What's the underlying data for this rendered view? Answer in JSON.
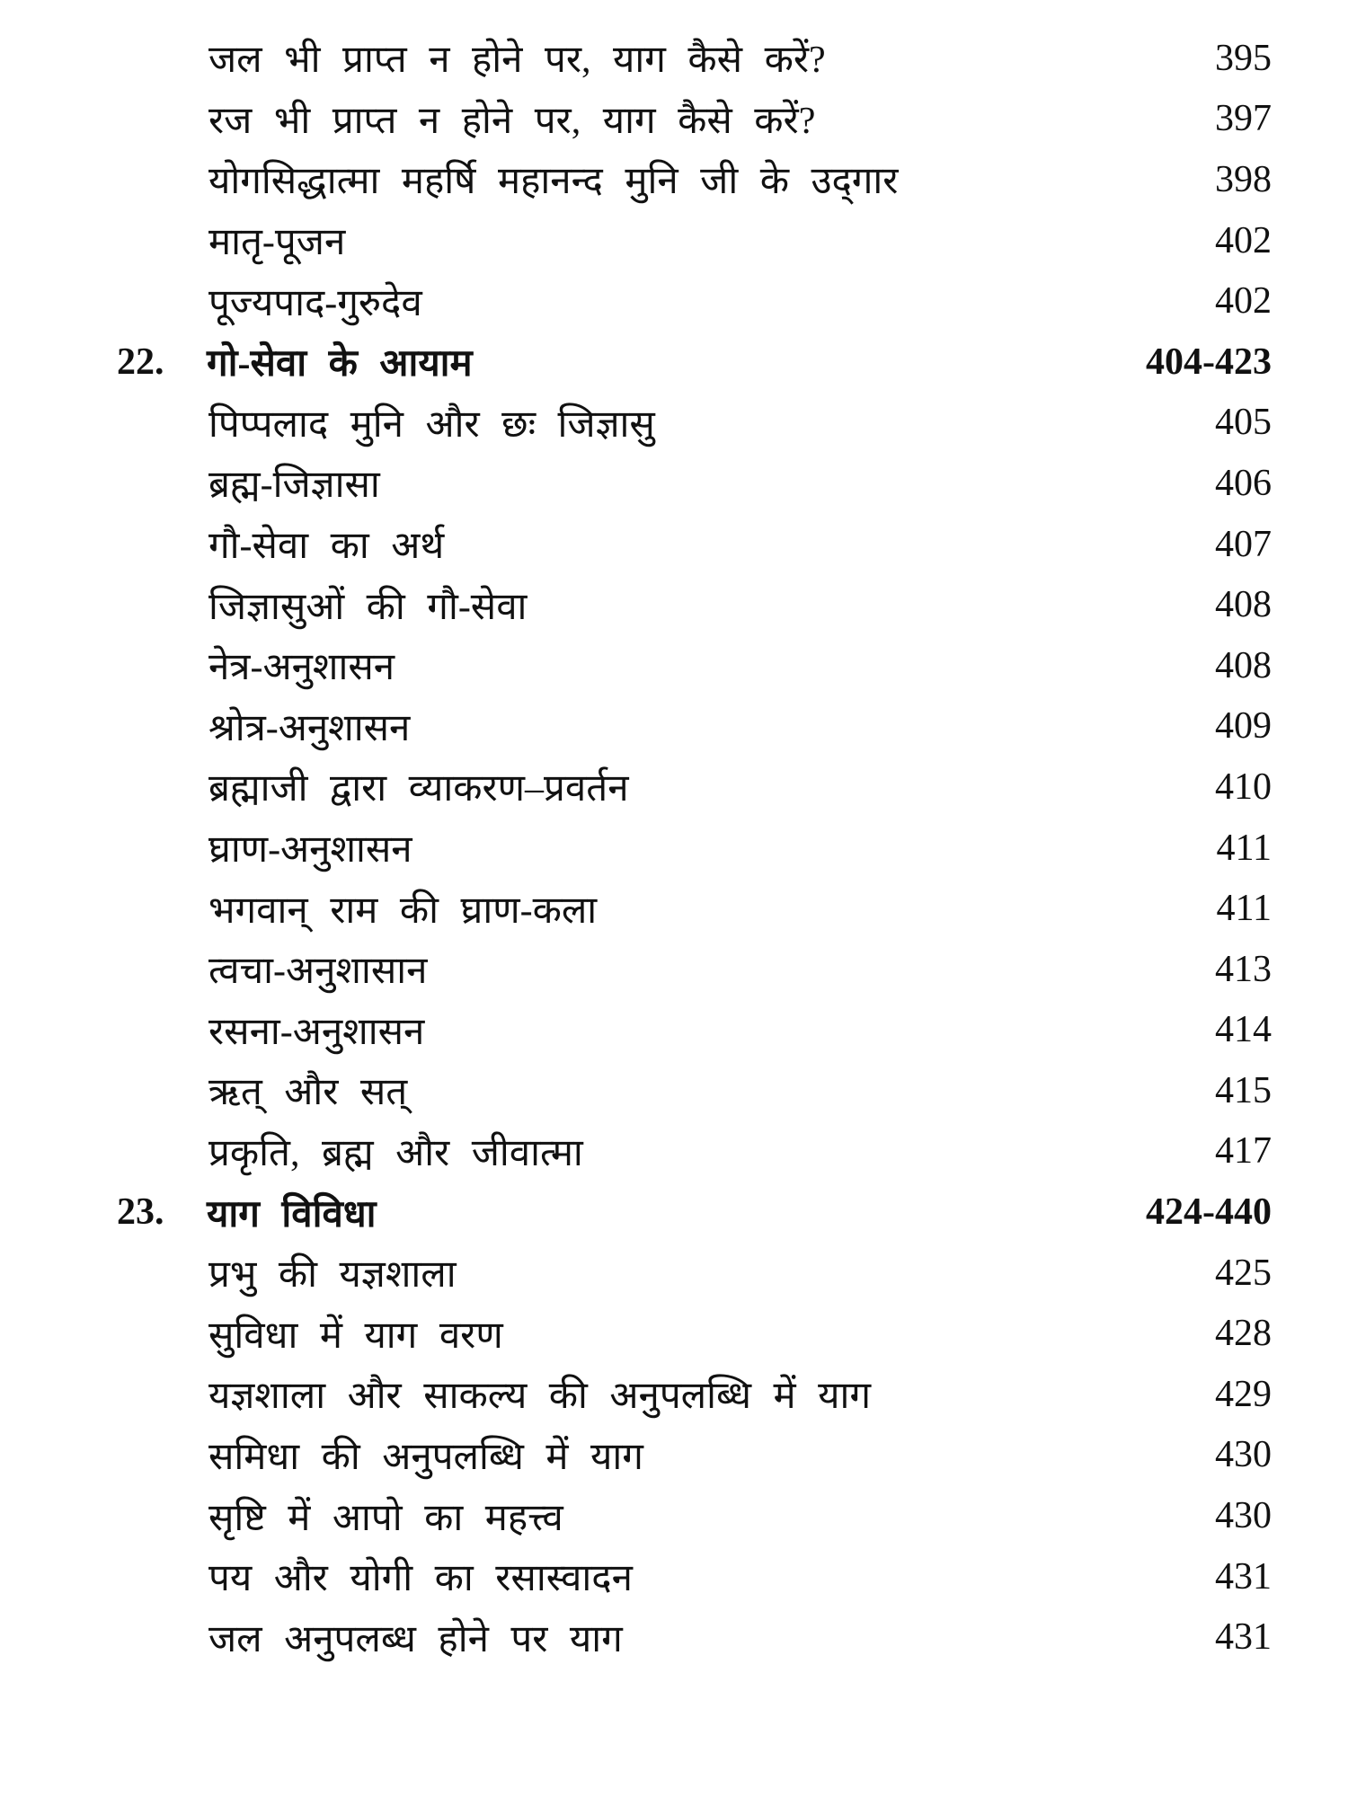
{
  "entries": [
    {
      "title": "जल भी प्राप्त न होने पर, याग कैसे करें?",
      "page": "395"
    },
    {
      "title": "रज भी प्राप्त न होने पर, याग कैसे करें?",
      "page": "397"
    },
    {
      "title": "योगसिद्धात्मा महर्षि महानन्द मुनि जी के उद्‌गार",
      "page": "398"
    },
    {
      "title": "मातृ-पूजन",
      "page": "402"
    },
    {
      "title": "पूज्यपाद-गुरुदेव",
      "page": "402"
    },
    {
      "number": "22.",
      "title": "गो-सेवा के आयाम",
      "page": "404-423",
      "chapter": true
    },
    {
      "title": "पिप्पलाद मुनि और छः जिज्ञासु",
      "page": "405"
    },
    {
      "title": "ब्रह्म-जिज्ञासा",
      "page": "406"
    },
    {
      "title": "गौ-सेवा का अर्थ",
      "page": "407"
    },
    {
      "title": "जिज्ञासुओं की गौ-सेवा",
      "page": "408"
    },
    {
      "title": "नेत्र-अनुशासन",
      "page": "408"
    },
    {
      "title": "श्रोत्र-अनुशासन",
      "page": "409"
    },
    {
      "title": "ब्रह्माजी द्वारा व्याकरण–प्रवर्तन",
      "page": "410"
    },
    {
      "title": "घ्राण-अनुशासन",
      "page": "411"
    },
    {
      "title": "भगवान् राम की घ्राण-कला",
      "page": "411"
    },
    {
      "title": "त्वचा-अनुशासान",
      "page": "413"
    },
    {
      "title": "रसना-अनुशासन",
      "page": "414"
    },
    {
      "title": "ऋत् और सत्",
      "page": "415"
    },
    {
      "title": "प्रकृति, ब्रह्म और जीवात्मा",
      "page": "417"
    },
    {
      "number": "23.",
      "title": "याग विविधा",
      "page": "424-440",
      "chapter": true
    },
    {
      "title": "प्रभु की यज्ञशाला",
      "page": "425"
    },
    {
      "title": "सुविधा में याग वरण",
      "page": "428"
    },
    {
      "title": "यज्ञशाला और साकल्य की अनुपलब्धि में याग",
      "page": "429"
    },
    {
      "title": "समिधा की अनुपलब्धि में याग",
      "page": "430"
    },
    {
      "title": "सृष्टि में आपो का महत्त्व",
      "page": "430"
    },
    {
      "title": "पय और योगी का रसास्वादन",
      "page": "431"
    },
    {
      "title": "जल अनुपलब्ध होने पर याग",
      "page": "431"
    }
  ]
}
